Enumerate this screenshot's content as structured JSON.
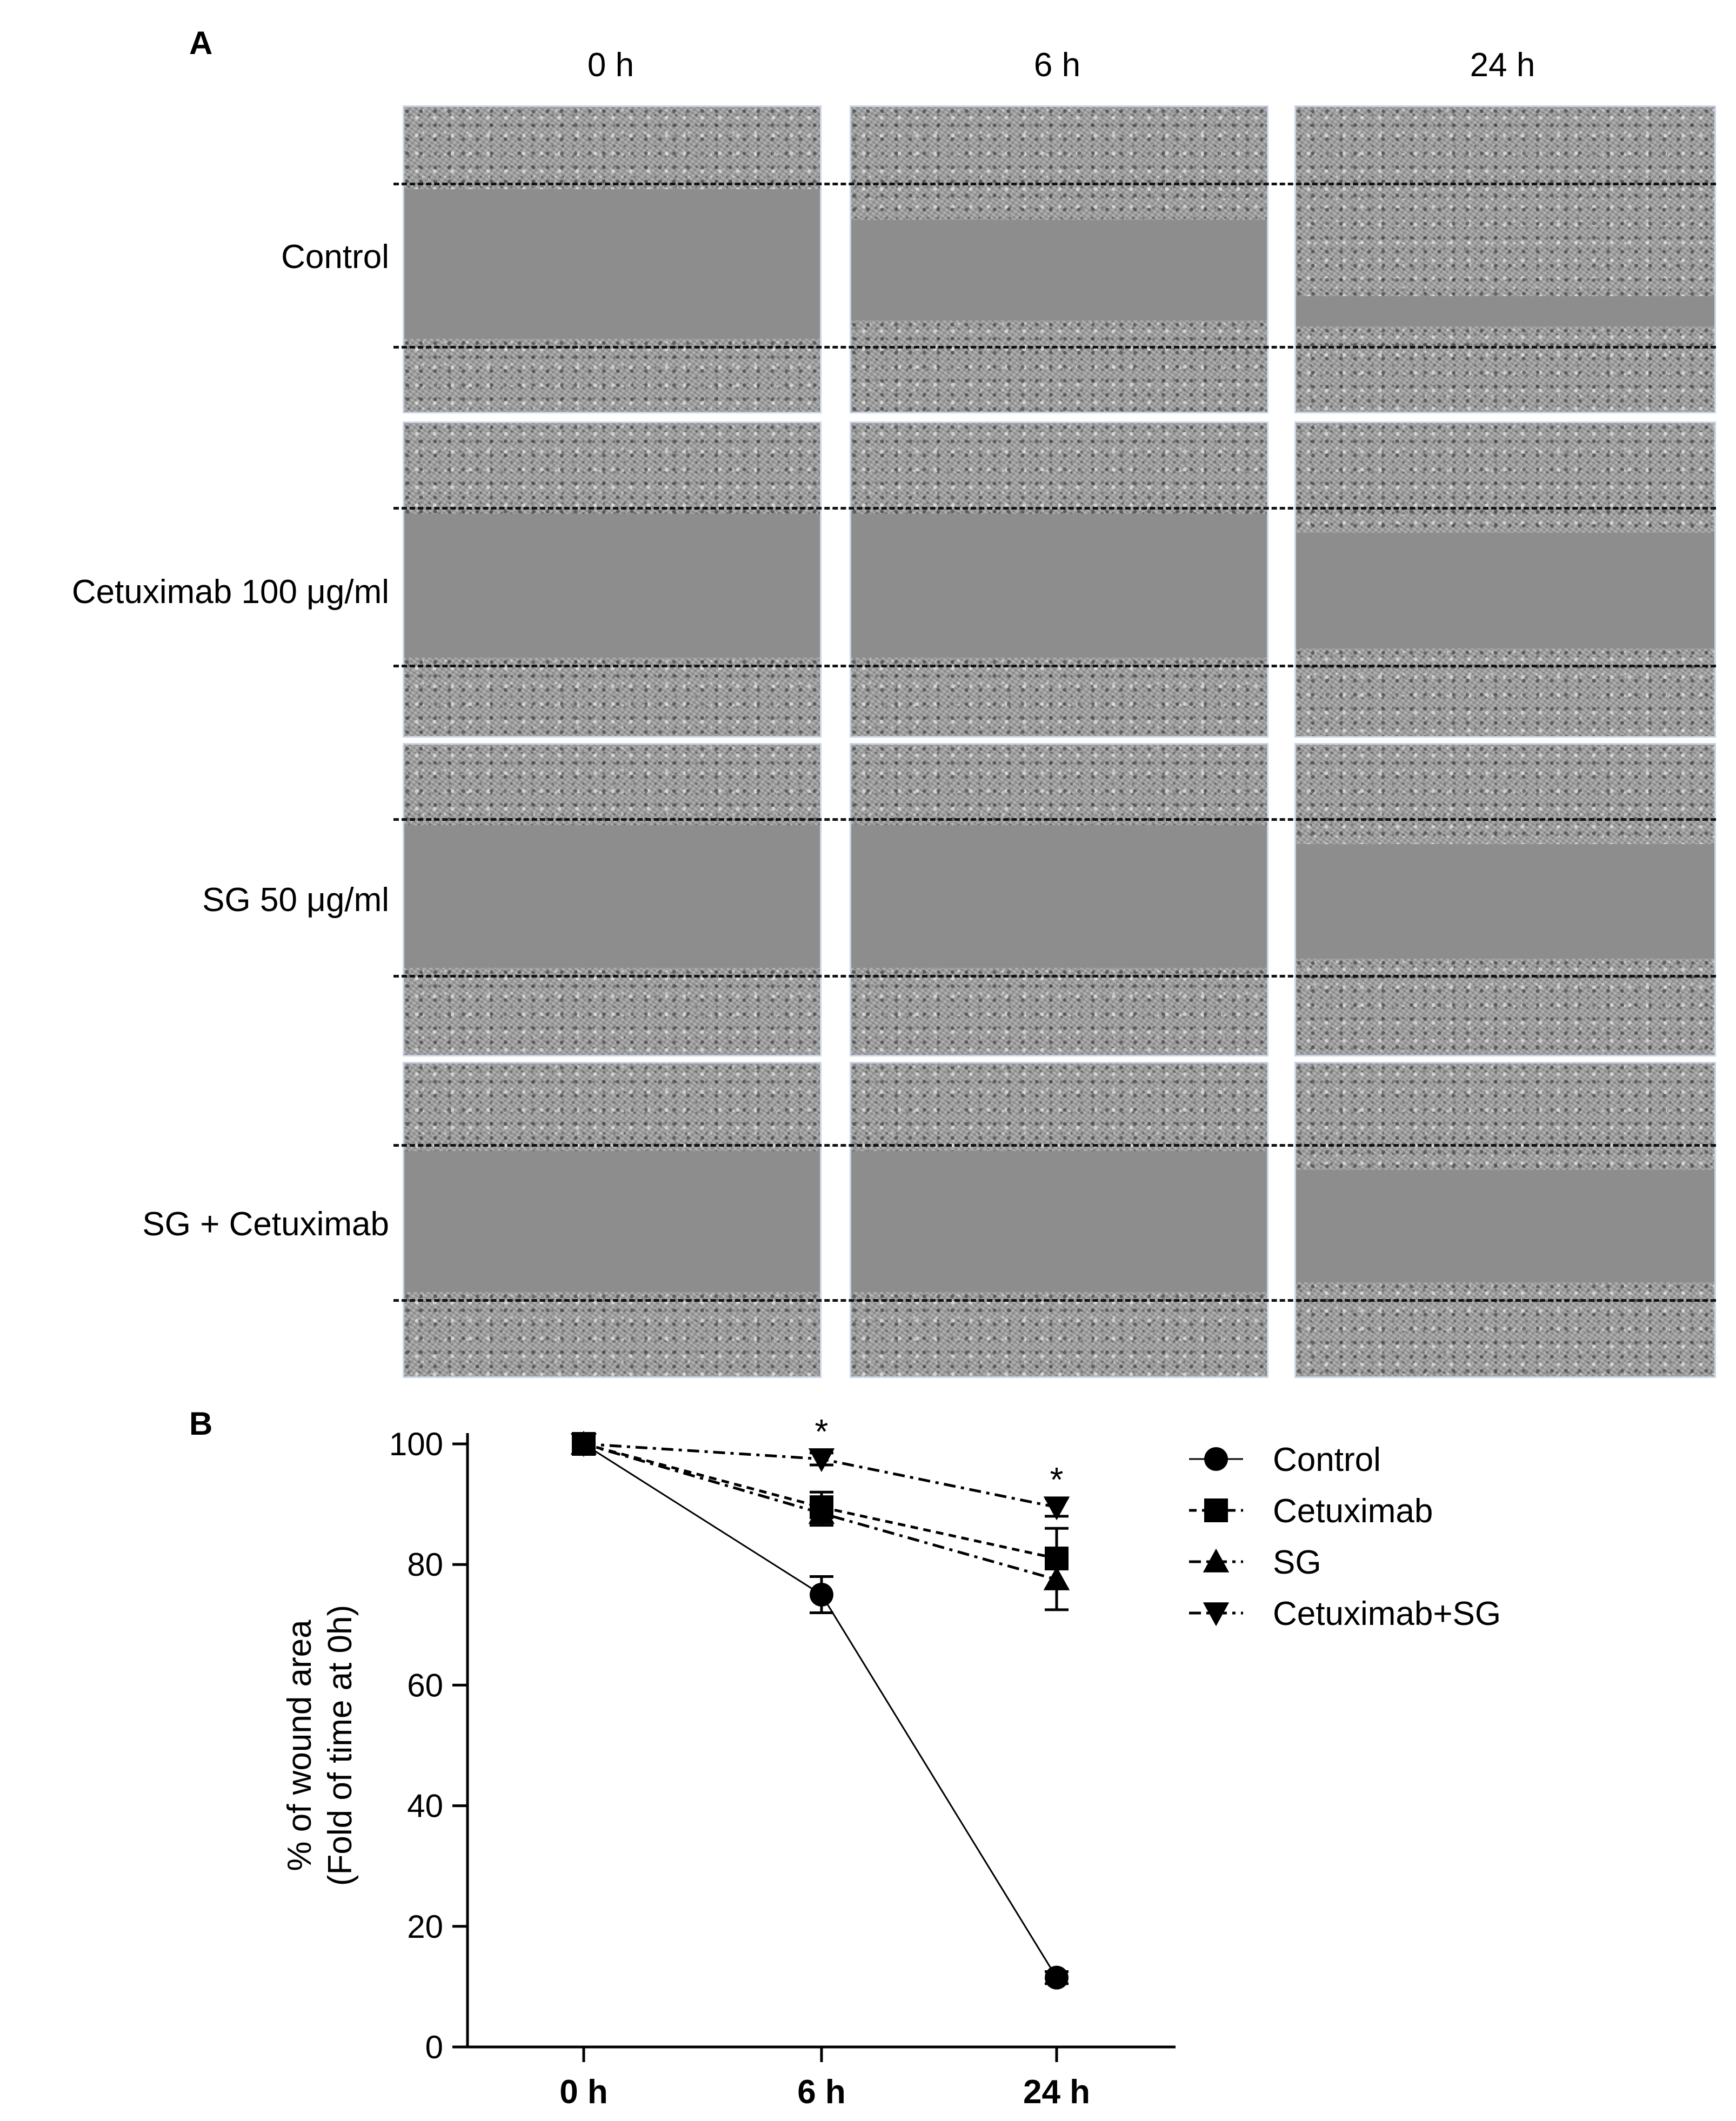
{
  "panel_a": {
    "letter": "A",
    "columns": [
      "0 h",
      "6 h",
      "24 h"
    ],
    "rows": [
      "Control",
      "Cetuximab 100 μg/ml",
      "SG 50 μg/ml",
      "SG + Cetuximab"
    ]
  },
  "panel_b": {
    "letter": "B"
  },
  "chart_data": {
    "type": "line",
    "categories": [
      "0 h",
      "6 h",
      "24 h"
    ],
    "ylabel_line1": "% of wound area",
    "ylabel_line2": "(Fold of time at 0h)",
    "ylim": [
      0,
      100
    ],
    "yticks": [
      0,
      20,
      40,
      60,
      80,
      100
    ],
    "grid": false,
    "legend_position": "right",
    "series": [
      {
        "name": "Control",
        "marker": "circle",
        "line": "solid",
        "values": [
          100,
          75,
          11.5
        ],
        "errors": [
          0,
          3,
          1
        ]
      },
      {
        "name": "Cetuximab",
        "marker": "square",
        "line": "dashed",
        "values": [
          100,
          89.5,
          81
        ],
        "errors": [
          0,
          2.5,
          5
        ]
      },
      {
        "name": "SG",
        "marker": "triangle-up",
        "line": "dashdot",
        "values": [
          100,
          88.5,
          77.5
        ],
        "errors": [
          0,
          2,
          5
        ]
      },
      {
        "name": "Cetuximab+SG",
        "marker": "triangle-down",
        "line": "dashdot",
        "values": [
          100,
          97.5,
          89.5
        ],
        "errors": [
          0,
          1,
          1.5
        ]
      }
    ],
    "annotations": [
      {
        "text": "*",
        "category": "6 h",
        "value": 101
      },
      {
        "text": "*",
        "category": "24 h",
        "value": 93
      }
    ]
  }
}
